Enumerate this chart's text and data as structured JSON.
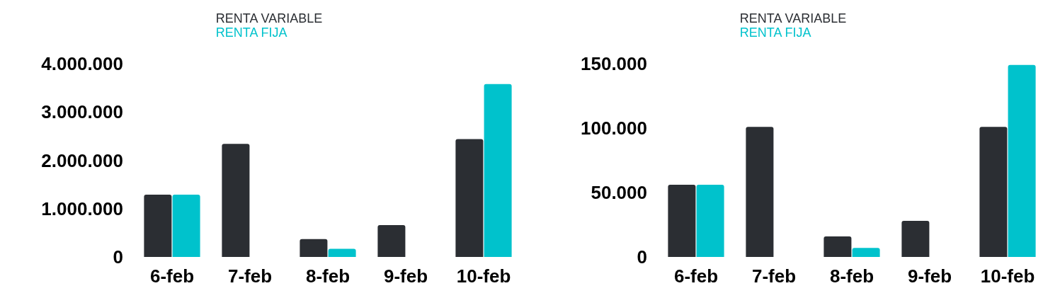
{
  "chart_data": [
    {
      "type": "bar",
      "categories": [
        "6-feb",
        "7-feb",
        "8-feb",
        "9-feb",
        "10-feb"
      ],
      "series": [
        {
          "name": "RENTA VARIABLE",
          "color": "#2b2e33",
          "values": [
            1290000,
            2340000,
            370000,
            660000,
            2440000
          ]
        },
        {
          "name": "RENTA FIJA",
          "color": "#00c2cc",
          "values": [
            1290000,
            0,
            170000,
            0,
            3580000
          ]
        }
      ],
      "ylim": [
        0,
        4000000
      ],
      "yticks": [
        {
          "value": 0,
          "label": "0"
        },
        {
          "value": 1000000,
          "label": "1.000.000"
        },
        {
          "value": 2000000,
          "label": "2.000.000"
        },
        {
          "value": 3000000,
          "label": "3.000.000"
        },
        {
          "value": 4000000,
          "label": "4.000.000"
        }
      ],
      "legend": "top",
      "grid": false
    },
    {
      "type": "bar",
      "categories": [
        "6-feb",
        "7-feb",
        "8-feb",
        "9-feb",
        "10-feb"
      ],
      "series": [
        {
          "name": "RENTA VARIABLE",
          "color": "#2b2e33",
          "values": [
            56000,
            101000,
            16000,
            28000,
            101000
          ]
        },
        {
          "name": "RENTA FIJA",
          "color": "#00c2cc",
          "values": [
            56000,
            0,
            7000,
            0,
            149000
          ]
        }
      ],
      "ylim": [
        0,
        150000
      ],
      "yticks": [
        {
          "value": 0,
          "label": "0"
        },
        {
          "value": 50000,
          "label": "50.000"
        },
        {
          "value": 100000,
          "label": "100.000"
        },
        {
          "value": 150000,
          "label": "150.000"
        }
      ],
      "legend": "top",
      "grid": false
    }
  ]
}
